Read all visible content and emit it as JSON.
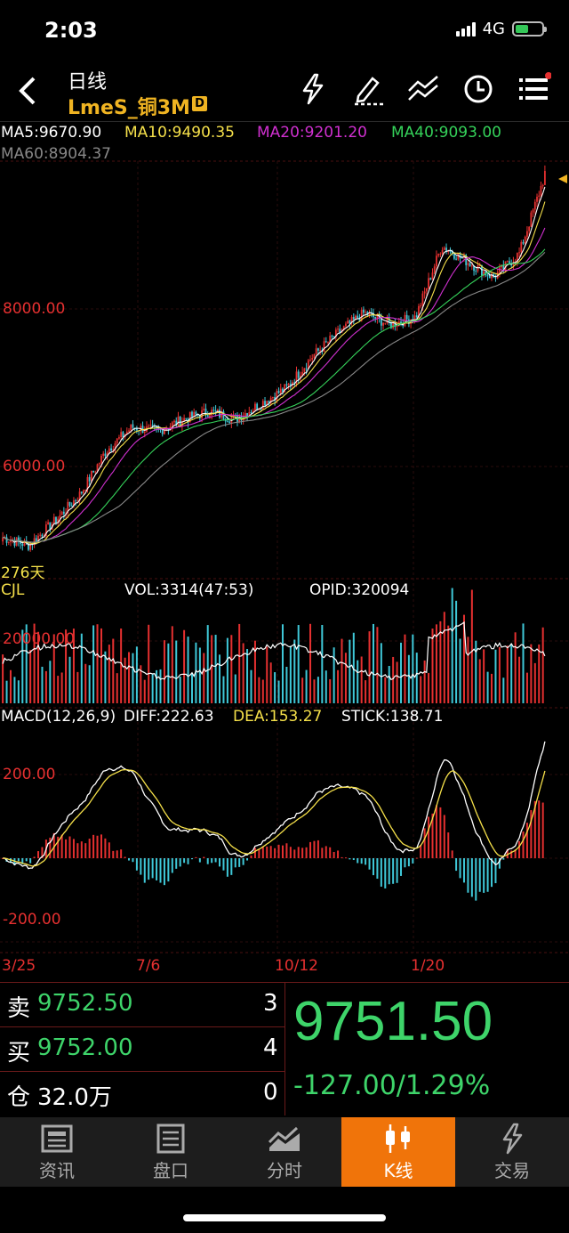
{
  "status": {
    "time": "2:03",
    "network": "4G"
  },
  "header": {
    "title": "日线",
    "symbol": "LmeS_铜3M",
    "badge": "D"
  },
  "ma": {
    "ma5": "MA5:9670.90",
    "ma10": "MA10:9490.35",
    "ma20": "MA20:9201.20",
    "ma40": "MA40:9093.00",
    "ma60": "MA60:8904.37"
  },
  "colors": {
    "ma5": "#ffffff",
    "ma10": "#f5e04a",
    "ma20": "#d030d0",
    "ma40": "#35d25a",
    "ma60": "#888888",
    "up": "#e53030",
    "down": "#3fc8d8",
    "accent": "#f0740a"
  },
  "price_axis": {
    "p8000": "8000.00",
    "p6000": "6000.00",
    "days": "276天"
  },
  "volume": {
    "label": "CJL",
    "vol": "VOL:3314(47:53)",
    "opid": "OPID:320094",
    "v20000": "20000.00"
  },
  "macd": {
    "label": "MACD(12,26,9)",
    "diff": "DIFF:222.63",
    "dea": "DEA:153.27",
    "stick": "STICK:138.71",
    "p200": "200.00",
    "m200": "-200.00"
  },
  "dates": [
    "3/25",
    "7/6",
    "10/12",
    "1/20"
  ],
  "quote": {
    "sell_label": "卖",
    "sell_price": "9752.50",
    "sell_qty": "3",
    "buy_label": "买",
    "buy_price": "9752.00",
    "buy_qty": "4",
    "oi_label": "仓",
    "oi_value": "32.0万",
    "oi_qty": "0",
    "last": "9751.50",
    "change": "-127.00/1.29%"
  },
  "nav": [
    {
      "label": "资讯",
      "icon": "news-icon"
    },
    {
      "label": "盘口",
      "icon": "orderbook-icon"
    },
    {
      "label": "分时",
      "icon": "timeshare-icon"
    },
    {
      "label": "K线",
      "icon": "candlestick-icon"
    },
    {
      "label": "交易",
      "icon": "trade-icon"
    }
  ],
  "chart_data": {
    "type": "line",
    "title": "LmeS_铜3M 日线",
    "x_ticks": [
      "3/25",
      "7/6",
      "10/12",
      "1/20"
    ],
    "price_ticks": [
      6000,
      8000
    ],
    "last_close": 9751.5,
    "ma_latest": {
      "MA5": 9670.9,
      "MA10": 9490.35,
      "MA20": 9201.2,
      "MA40": 9093.0,
      "MA60": 8904.37
    },
    "close_approx": [
      5100,
      5000,
      5300,
      5650,
      6200,
      6500,
      6450,
      6600,
      6700,
      6600,
      6800,
      7000,
      7400,
      7700,
      7950,
      7800,
      7900,
      8800,
      8600,
      8400,
      8700,
      9700
    ],
    "volume_ticks": [
      20000
    ],
    "macd_ticks": [
      200,
      -200
    ],
    "macd_latest": {
      "DIFF": 222.63,
      "DEA": 153.27,
      "STICK": 138.71
    }
  }
}
